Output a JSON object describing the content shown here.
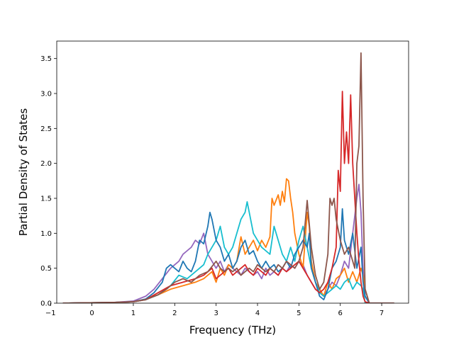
{
  "chart_data": {
    "type": "line",
    "title": "",
    "xlabel": "Frequency (THz)",
    "ylabel": "Partial Density of States",
    "xlim": [
      -0.85,
      7.65
    ],
    "ylim": [
      0.0,
      3.75
    ],
    "xticks": [
      -1,
      0,
      1,
      2,
      3,
      4,
      5,
      6,
      7
    ],
    "xtick_labels": [
      "−1",
      "0",
      "1",
      "2",
      "3",
      "4",
      "5",
      "6",
      "7"
    ],
    "yticks": [
      0.0,
      0.5,
      1.0,
      1.5,
      2.0,
      2.5,
      3.0,
      3.5
    ],
    "ytick_labels": [
      "0.0",
      "0.5",
      "1.0",
      "1.5",
      "2.0",
      "2.5",
      "3.0",
      "3.5"
    ],
    "grid": false,
    "legend": "none",
    "series": [
      {
        "color": "#9467bd",
        "x": [
          -0.7,
          0.5,
          1.0,
          1.3,
          1.5,
          1.7,
          1.9,
          2.1,
          2.2,
          2.3,
          2.4,
          2.5,
          2.6,
          2.7,
          2.8,
          2.9,
          3.0,
          3.1,
          3.2,
          3.3,
          3.4,
          3.5,
          3.6,
          3.7,
          3.8,
          3.9,
          4.0,
          4.1,
          4.2,
          4.3,
          4.4,
          4.5,
          4.6,
          4.7,
          4.8,
          4.9,
          5.0,
          5.1,
          5.2,
          5.3,
          5.4,
          5.5,
          5.6,
          5.7,
          5.8,
          5.9,
          6.0,
          6.1,
          6.2,
          6.3,
          6.4,
          6.45,
          6.5,
          6.55,
          6.6,
          6.7,
          7.3
        ],
        "y": [
          0.0,
          0.01,
          0.03,
          0.1,
          0.2,
          0.35,
          0.5,
          0.6,
          0.7,
          0.75,
          0.8,
          0.9,
          0.85,
          1.0,
          0.7,
          0.6,
          0.5,
          0.6,
          0.45,
          0.55,
          0.5,
          0.45,
          0.4,
          0.5,
          0.45,
          0.4,
          0.45,
          0.35,
          0.5,
          0.4,
          0.45,
          0.4,
          0.5,
          0.45,
          0.55,
          0.5,
          0.6,
          0.55,
          0.4,
          0.3,
          0.2,
          0.15,
          0.1,
          0.2,
          0.3,
          0.25,
          0.4,
          0.6,
          0.5,
          1.0,
          1.5,
          1.7,
          1.3,
          0.5,
          0.1,
          0.0,
          0.0
        ]
      },
      {
        "color": "#ff7f0e",
        "x": [
          -0.7,
          0.5,
          1.0,
          1.3,
          1.6,
          1.9,
          2.2,
          2.5,
          2.7,
          2.9,
          3.0,
          3.1,
          3.2,
          3.3,
          3.4,
          3.5,
          3.6,
          3.7,
          3.8,
          3.9,
          4.0,
          4.1,
          4.2,
          4.3,
          4.35,
          4.4,
          4.5,
          4.55,
          4.6,
          4.65,
          4.7,
          4.75,
          4.8,
          4.85,
          4.9,
          5.0,
          5.1,
          5.2,
          5.25,
          5.3,
          5.4,
          5.5,
          5.6,
          5.7,
          5.8,
          5.9,
          6.0,
          6.1,
          6.2,
          6.3,
          6.4,
          6.5,
          6.55,
          6.6,
          6.7,
          7.3
        ],
        "y": [
          0.0,
          0.01,
          0.02,
          0.06,
          0.12,
          0.2,
          0.25,
          0.3,
          0.35,
          0.45,
          0.3,
          0.5,
          0.4,
          0.55,
          0.5,
          0.6,
          0.95,
          0.7,
          0.8,
          0.9,
          0.75,
          0.9,
          0.8,
          0.95,
          1.5,
          1.4,
          1.55,
          1.4,
          1.6,
          1.45,
          1.78,
          1.75,
          1.5,
          1.3,
          1.0,
          0.7,
          0.5,
          1.3,
          1.1,
          0.6,
          0.3,
          0.2,
          0.1,
          0.3,
          0.2,
          0.35,
          0.4,
          0.5,
          0.3,
          0.45,
          0.3,
          0.5,
          0.4,
          0.2,
          0.0,
          0.0
        ]
      },
      {
        "color": "#17becf",
        "x": [
          -0.7,
          0.5,
          1.0,
          1.3,
          1.6,
          1.9,
          2.1,
          2.3,
          2.5,
          2.7,
          2.8,
          2.9,
          3.0,
          3.1,
          3.2,
          3.3,
          3.4,
          3.5,
          3.6,
          3.7,
          3.75,
          3.8,
          3.9,
          4.0,
          4.1,
          4.2,
          4.3,
          4.4,
          4.5,
          4.6,
          4.7,
          4.8,
          4.9,
          5.0,
          5.1,
          5.2,
          5.3,
          5.4,
          5.5,
          5.6,
          5.7,
          5.8,
          5.9,
          6.0,
          6.1,
          6.2,
          6.3,
          6.4,
          6.5,
          6.55,
          6.6,
          6.7,
          7.3
        ],
        "y": [
          0.0,
          0.01,
          0.02,
          0.05,
          0.12,
          0.25,
          0.4,
          0.35,
          0.45,
          0.55,
          0.7,
          0.8,
          0.9,
          1.1,
          0.8,
          0.7,
          0.8,
          1.0,
          1.2,
          1.3,
          1.45,
          1.3,
          1.0,
          0.9,
          0.8,
          0.75,
          0.7,
          1.1,
          0.9,
          0.7,
          0.6,
          0.8,
          0.6,
          0.9,
          1.1,
          0.8,
          0.5,
          0.3,
          0.15,
          0.1,
          0.15,
          0.2,
          0.25,
          0.2,
          0.3,
          0.35,
          0.2,
          0.3,
          0.25,
          0.2,
          0.0,
          0.0,
          0.0
        ]
      },
      {
        "color": "#1f77b4",
        "x": [
          -0.7,
          0.5,
          1.0,
          1.3,
          1.5,
          1.7,
          1.8,
          1.9,
          2.0,
          2.1,
          2.2,
          2.3,
          2.4,
          2.5,
          2.6,
          2.7,
          2.8,
          2.85,
          2.9,
          3.0,
          3.1,
          3.2,
          3.3,
          3.4,
          3.5,
          3.6,
          3.7,
          3.8,
          3.9,
          4.0,
          4.1,
          4.2,
          4.3,
          4.4,
          4.5,
          4.6,
          4.7,
          4.8,
          4.9,
          5.0,
          5.1,
          5.2,
          5.25,
          5.3,
          5.4,
          5.5,
          5.6,
          5.7,
          5.8,
          5.9,
          6.0,
          6.05,
          6.1,
          6.2,
          6.3,
          6.4,
          6.5,
          6.55,
          6.6,
          6.7,
          7.3
        ],
        "y": [
          0.0,
          0.01,
          0.02,
          0.06,
          0.15,
          0.3,
          0.5,
          0.55,
          0.5,
          0.45,
          0.6,
          0.5,
          0.45,
          0.6,
          0.9,
          0.85,
          1.1,
          1.3,
          1.2,
          0.9,
          0.8,
          0.6,
          0.7,
          0.5,
          0.6,
          0.8,
          0.9,
          0.7,
          0.75,
          0.6,
          0.5,
          0.6,
          0.5,
          0.55,
          0.45,
          0.5,
          0.6,
          0.5,
          0.7,
          0.8,
          0.9,
          0.8,
          1.0,
          0.5,
          0.3,
          0.1,
          0.05,
          0.2,
          0.5,
          0.6,
          0.8,
          1.35,
          0.9,
          0.7,
          1.0,
          0.5,
          0.8,
          0.3,
          0.1,
          0.0,
          0.0
        ]
      },
      {
        "color": "#d62728",
        "x": [
          -0.7,
          0.5,
          1.0,
          1.3,
          1.6,
          1.9,
          2.2,
          2.5,
          2.7,
          2.9,
          3.0,
          3.1,
          3.2,
          3.3,
          3.4,
          3.5,
          3.6,
          3.7,
          3.8,
          3.9,
          4.0,
          4.1,
          4.2,
          4.3,
          4.4,
          4.5,
          4.6,
          4.7,
          4.8,
          4.9,
          5.0,
          5.1,
          5.2,
          5.3,
          5.4,
          5.5,
          5.6,
          5.7,
          5.8,
          5.9,
          5.95,
          6.0,
          6.05,
          6.1,
          6.15,
          6.2,
          6.25,
          6.3,
          6.35,
          6.4,
          6.45,
          6.5,
          6.55,
          6.6,
          6.7,
          7.3
        ],
        "y": [
          0.0,
          0.01,
          0.02,
          0.05,
          0.15,
          0.25,
          0.3,
          0.35,
          0.4,
          0.5,
          0.35,
          0.4,
          0.45,
          0.5,
          0.4,
          0.45,
          0.5,
          0.55,
          0.45,
          0.4,
          0.5,
          0.45,
          0.4,
          0.5,
          0.45,
          0.4,
          0.5,
          0.45,
          0.5,
          0.55,
          0.6,
          0.5,
          0.4,
          0.3,
          0.2,
          0.15,
          0.2,
          0.3,
          0.5,
          0.8,
          1.9,
          1.6,
          3.03,
          2.0,
          2.45,
          2.0,
          2.98,
          2.0,
          1.5,
          1.0,
          0.6,
          0.3,
          0.1,
          0.02,
          0.0,
          0.0
        ]
      },
      {
        "color": "#8c564b",
        "x": [
          -0.7,
          0.5,
          1.0,
          1.3,
          1.6,
          1.8,
          2.0,
          2.2,
          2.4,
          2.6,
          2.8,
          3.0,
          3.1,
          3.2,
          3.3,
          3.4,
          3.5,
          3.6,
          3.7,
          3.8,
          3.9,
          4.0,
          4.1,
          4.2,
          4.3,
          4.4,
          4.5,
          4.6,
          4.7,
          4.8,
          4.9,
          5.0,
          5.1,
          5.2,
          5.3,
          5.4,
          5.5,
          5.6,
          5.7,
          5.75,
          5.8,
          5.85,
          5.9,
          6.0,
          6.1,
          6.2,
          6.3,
          6.35,
          6.4,
          6.45,
          6.5,
          6.55,
          6.6,
          6.7,
          7.3
        ],
        "y": [
          0.0,
          0.01,
          0.02,
          0.05,
          0.12,
          0.2,
          0.3,
          0.35,
          0.3,
          0.4,
          0.45,
          0.6,
          0.5,
          0.45,
          0.5,
          0.45,
          0.5,
          0.4,
          0.45,
          0.5,
          0.45,
          0.55,
          0.5,
          0.45,
          0.5,
          0.45,
          0.55,
          0.5,
          0.6,
          0.55,
          0.5,
          0.6,
          0.8,
          1.47,
          0.8,
          0.4,
          0.2,
          0.3,
          0.7,
          1.5,
          1.4,
          1.5,
          1.2,
          0.9,
          0.7,
          0.8,
          0.6,
          0.5,
          2.0,
          2.25,
          3.58,
          1.5,
          0.2,
          0.0,
          0.0
        ]
      }
    ]
  }
}
